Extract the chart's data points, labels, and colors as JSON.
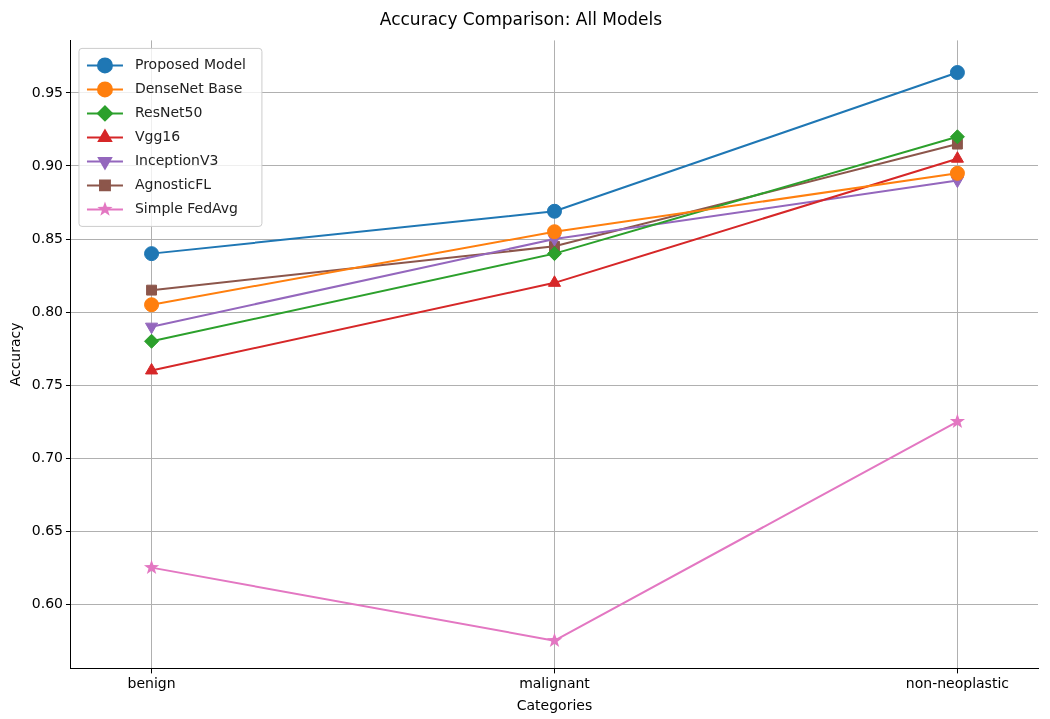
{
  "chart_data": {
    "type": "line",
    "title": "Accuracy Comparison: All Models",
    "xlabel": "Categories",
    "ylabel": "Accuracy",
    "categories": [
      "benign",
      "malignant",
      "non-neoplastic"
    ],
    "series": [
      {
        "name": "Proposed Model",
        "color": "#1f77b4",
        "marker": "circle",
        "values": [
          0.84,
          0.869,
          0.964
        ]
      },
      {
        "name": "DenseNet Base",
        "color": "#ff7f0e",
        "marker": "circle",
        "values": [
          0.805,
          0.855,
          0.895
        ]
      },
      {
        "name": "ResNet50",
        "color": "#2ca02c",
        "marker": "diamond",
        "values": [
          0.78,
          0.84,
          0.92
        ]
      },
      {
        "name": "Vgg16",
        "color": "#d62728",
        "marker": "triangle",
        "values": [
          0.76,
          0.82,
          0.905
        ]
      },
      {
        "name": "InceptionV3",
        "color": "#9467bd",
        "marker": "triangle_down",
        "values": [
          0.79,
          0.85,
          0.89
        ]
      },
      {
        "name": "AgnosticFL",
        "color": "#8c564b",
        "marker": "square",
        "values": [
          0.815,
          0.845,
          0.915
        ]
      },
      {
        "name": "Simple FedAvg",
        "color": "#e377c2",
        "marker": "star",
        "values": [
          0.625,
          0.575,
          0.725
        ]
      }
    ],
    "ylim": [
      0.556,
      0.986
    ],
    "yticks": [
      {
        "value": 0.6,
        "label": "0.60"
      },
      {
        "value": 0.65,
        "label": "0.65"
      },
      {
        "value": 0.7,
        "label": "0.70"
      },
      {
        "value": 0.75,
        "label": "0.75"
      },
      {
        "value": 0.8,
        "label": "0.80"
      },
      {
        "value": 0.85,
        "label": "0.85"
      },
      {
        "value": 0.9,
        "label": "0.90"
      },
      {
        "value": 0.95,
        "label": "0.95"
      }
    ],
    "grid": true,
    "legend": "top left",
    "line_style": "solid"
  }
}
